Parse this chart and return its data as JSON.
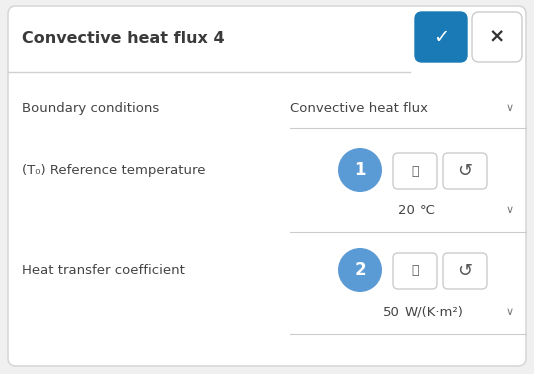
{
  "bg_color": "#ffffff",
  "panel_bg": "#ffffff",
  "outer_bg": "#f0f0f0",
  "title": "Convective heat flux 4",
  "title_fontsize": 11.5,
  "title_color": "#3a3a3a",
  "check_btn_color": "#1a7ab5",
  "close_btn_color": "#ffffff",
  "boundary_label": "Boundary conditions",
  "boundary_value": "Convective heat flux",
  "ref_temp_label": "(T₀) Reference temperature",
  "heat_coeff_label": "Heat transfer coefficient",
  "circle1_color": "#5b9bd5",
  "circle2_color": "#5b9bd5",
  "label_color": "#444444",
  "value_color": "#444444",
  "divider_color": "#cccccc",
  "btn_border_color": "#cccccc",
  "btn_bg_color": "#ffffff",
  "header_divider_color": "#d0d0d0",
  "chevron_color": "#777777"
}
